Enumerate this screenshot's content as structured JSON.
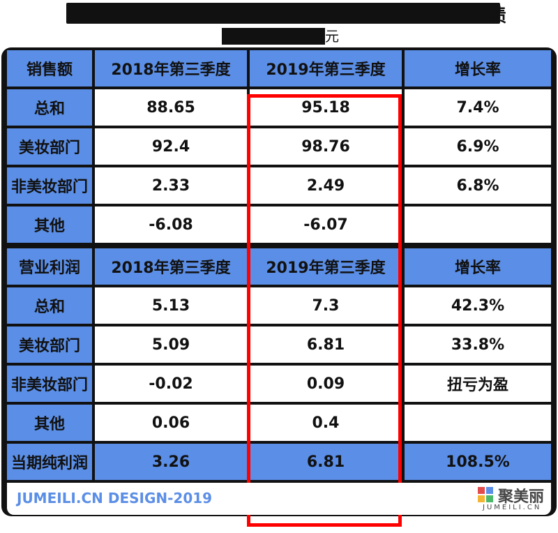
{
  "title_last_char": "债",
  "subtitle_unit": "元",
  "sections": [
    {
      "header": [
        "销售额",
        "2018年第三季度",
        "2019年第三季度",
        "增长率"
      ],
      "rows": [
        [
          "总和",
          "88.65",
          "95.18",
          "7.4%"
        ],
        [
          "美妆部门",
          "92.4",
          "98.76",
          "6.9%"
        ],
        [
          "非美妆部门",
          "2.33",
          "2.49",
          "6.8%"
        ],
        [
          "其他",
          "-6.08",
          "-6.07",
          ""
        ]
      ]
    },
    {
      "header": [
        "营业利润",
        "2018年第三季度",
        "2019年第三季度",
        "增长率"
      ],
      "rows": [
        [
          "总和",
          "5.13",
          "7.3",
          "42.3%"
        ],
        [
          "美妆部门",
          "5.09",
          "6.81",
          "33.8%"
        ],
        [
          "非美妆部门",
          "-0.02",
          "0.09",
          "扭亏为盈"
        ],
        [
          "其他",
          "0.06",
          "0.4",
          ""
        ]
      ]
    }
  ],
  "net_profit_row": [
    "当期纯利润",
    "3.26",
    "6.81",
    "108.5%"
  ],
  "footer": {
    "credit": "JUMEILI.CN DESIGN-2019",
    "brand": "聚美丽",
    "brand_sub": "JUMEILI.CN"
  },
  "colors": {
    "header_blue": "#5b8ee6",
    "highlight_red": "#ff0000",
    "frame": "#111111"
  }
}
